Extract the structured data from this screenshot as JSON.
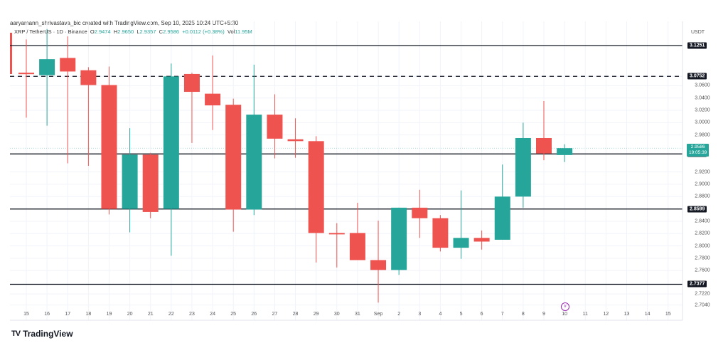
{
  "header": {
    "credit": "aaryamann_shrivastava_bic created with TradingView.com, Sep 10, 2025 10:24 UTC+5:30",
    "symbol": "XRP / TetherUS · 1D · Binance",
    "ohlc": {
      "open_label": "O",
      "open": "2.9474",
      "high_label": "H",
      "high": "2.9650",
      "low_label": "L",
      "low": "2.9357",
      "close_label": "C",
      "close": "2.9586",
      "change": "+0.0112 (+0.38%)",
      "vol_label": "Vol",
      "vol": "11.95M"
    }
  },
  "price_axis": {
    "unit": "USDT",
    "ticks": [
      "3.0600",
      "3.0400",
      "3.0200",
      "3.0000",
      "2.9800",
      "2.9200",
      "2.9000",
      "2.8800",
      "2.8400",
      "2.8200",
      "2.8000",
      "2.7800",
      "2.7600",
      "2.7220",
      "2.7040"
    ],
    "tags": [
      "3.1251",
      "3.0752",
      "2.9492",
      "2.8599",
      "2.7377"
    ],
    "live_price": "2.9586",
    "live_countdown": "19:05:39"
  },
  "time_axis": {
    "labels": [
      "15",
      "16",
      "17",
      "18",
      "19",
      "20",
      "21",
      "22",
      "23",
      "24",
      "25",
      "26",
      "27",
      "28",
      "29",
      "30",
      "31",
      "Sep",
      "2",
      "3",
      "4",
      "5",
      "6",
      "7",
      "8",
      "9",
      "10",
      "11",
      "12",
      "13",
      "14",
      "15"
    ]
  },
  "branding": {
    "logo_text": "TradingView"
  },
  "colors": {
    "up": "#26a69a",
    "down": "#ef5350",
    "level": "#131722",
    "grid": "#f0f3fa"
  },
  "chart_data": {
    "type": "candlestick",
    "title": "XRP / TetherUS · 1D · Binance",
    "xlabel": "",
    "ylabel": "USDT",
    "ylim": [
      2.695,
      3.15
    ],
    "grid": true,
    "categories": [
      "Aug 15",
      "Aug 16",
      "Aug 17",
      "Aug 18",
      "Aug 19",
      "Aug 20",
      "Aug 21",
      "Aug 22",
      "Aug 23",
      "Aug 24",
      "Aug 25",
      "Aug 26",
      "Aug 27",
      "Aug 28",
      "Aug 29",
      "Aug 30",
      "Aug 31",
      "Sep 1",
      "Sep 2",
      "Sep 3",
      "Sep 4",
      "Sep 5",
      "Sep 6",
      "Sep 7",
      "Sep 8",
      "Sep 9",
      "Sep 10"
    ],
    "series": [
      {
        "name": "open",
        "values": [
          3.081,
          3.077,
          3.105,
          3.085,
          3.061,
          2.86,
          2.948,
          2.86,
          3.079,
          3.047,
          3.029,
          2.859,
          3.013,
          2.973,
          2.97,
          2.821,
          2.821,
          2.777,
          2.761,
          2.862,
          2.845,
          2.797,
          2.813,
          2.81,
          2.88,
          2.975,
          2.9474
        ]
      },
      {
        "name": "high",
        "values": [
          3.135,
          3.152,
          3.14,
          3.09,
          3.091,
          2.991,
          2.951,
          3.096,
          3.081,
          3.109,
          3.039,
          3.094,
          3.046,
          3.007,
          2.978,
          2.837,
          2.87,
          2.841,
          2.862,
          2.891,
          2.85,
          2.89,
          2.825,
          2.932,
          3.0,
          3.035,
          2.965
        ]
      },
      {
        "name": "low",
        "values": [
          3.008,
          2.995,
          2.934,
          2.93,
          2.851,
          2.822,
          2.845,
          2.784,
          2.967,
          2.988,
          2.823,
          2.85,
          2.942,
          2.943,
          2.773,
          2.765,
          2.779,
          2.708,
          2.753,
          2.813,
          2.791,
          2.779,
          2.794,
          2.811,
          2.862,
          2.939,
          2.936
        ]
      },
      {
        "name": "close",
        "values": [
          3.079,
          3.103,
          3.083,
          3.061,
          2.86,
          2.948,
          2.855,
          3.075,
          3.05,
          3.028,
          2.859,
          3.013,
          2.974,
          2.97,
          2.821,
          2.819,
          2.777,
          2.761,
          2.862,
          2.845,
          2.797,
          2.813,
          2.807,
          2.88,
          2.975,
          2.95,
          2.9586
        ]
      }
    ],
    "levels": [
      {
        "price": 3.1251,
        "style": "solid"
      },
      {
        "price": 3.0752,
        "style": "dashed"
      },
      {
        "price": 2.9492,
        "style": "solid"
      },
      {
        "price": 2.8599,
        "style": "solid"
      },
      {
        "price": 2.7377,
        "style": "solid"
      }
    ]
  }
}
